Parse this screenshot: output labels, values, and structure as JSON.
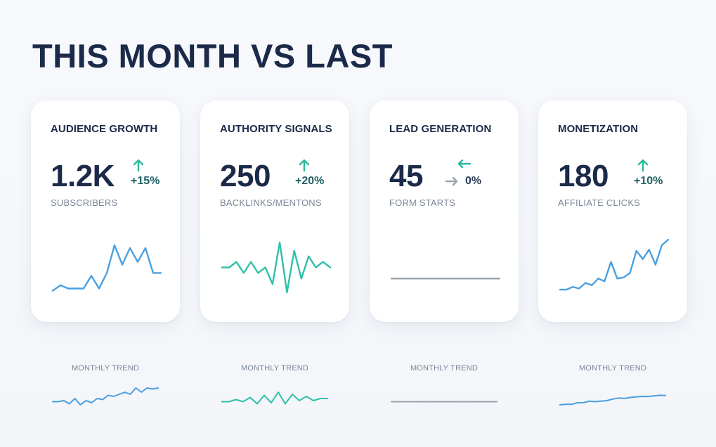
{
  "page_title": "THIS MONTH VS LAST",
  "colors": {
    "title": "#1b2a49",
    "blue_line": "#4a9fe0",
    "teal_line": "#2fc0a8",
    "gray_line": "#9aa3ad",
    "up_arrow": "#2ab89e",
    "left_arrow": "#2ab89e",
    "right_arrow": "#9aa3ad"
  },
  "cards": [
    {
      "title": "AUDIENCE GROWTH",
      "value": "1.2K",
      "delta_text": "+15%",
      "delta_icon": "arrow-up-icon",
      "subtitle": "SUBSCRIBERS",
      "trend_label": "MONTHLY TREND",
      "line_color": "#4a9fe0",
      "sparkline": [
        0.08,
        0.18,
        0.12,
        0.12,
        0.12,
        0.35,
        0.12,
        0.4,
        0.9,
        0.55,
        0.85,
        0.6,
        0.85,
        0.4,
        0.4
      ],
      "trend": [
        0.5,
        0.5,
        0.6,
        0.3,
        0.8,
        0.2,
        0.6,
        0.4,
        0.8,
        0.7,
        1.1,
        1.0,
        1.2,
        1.4,
        1.2,
        1.8,
        1.4,
        1.8,
        1.7,
        1.8
      ]
    },
    {
      "title": "AUTHORITY SIGNALS",
      "value": "250",
      "delta_text": "+20%",
      "delta_icon": "arrow-up-icon",
      "subtitle": "BACKLINKS/MENTONS",
      "trend_label": "MONTHLY TREND",
      "line_color": "#2fc0a8",
      "sparkline": [
        0.5,
        0.5,
        0.6,
        0.4,
        0.6,
        0.4,
        0.5,
        0.2,
        0.95,
        0.05,
        0.8,
        0.3,
        0.7,
        0.5,
        0.6,
        0.5
      ],
      "trend": [
        0.5,
        0.5,
        0.7,
        0.5,
        0.9,
        0.3,
        1.1,
        0.4,
        1.4,
        0.3,
        1.2,
        0.6,
        1.0,
        0.6,
        0.8,
        0.8
      ]
    },
    {
      "title": "LEAD GENERATION",
      "value": "45",
      "delta_text": "0%",
      "delta_icon": "arrow-right-icon",
      "delta_icon_top": "arrow-left-icon",
      "subtitle": "FORM STARTS",
      "trend_label": "MONTHLY TREND",
      "line_color": "#9aa3ad",
      "sparkline": [
        0.3,
        0.3
      ],
      "trend": [
        0.5,
        0.5
      ]
    },
    {
      "title": "MONETIZATION",
      "value": "180",
      "delta_text": "+10%",
      "delta_icon": "arrow-up-icon",
      "subtitle": "AFFILIATE CLICKS",
      "trend_label": "MONTHLY TREND",
      "line_color": "#4a9fe0",
      "sparkline": [
        0.1,
        0.1,
        0.15,
        0.12,
        0.22,
        0.18,
        0.3,
        0.25,
        0.6,
        0.3,
        0.32,
        0.4,
        0.8,
        0.65,
        0.82,
        0.55,
        0.9,
        1.0
      ],
      "trend": [
        0.2,
        0.25,
        0.25,
        0.4,
        0.4,
        0.55,
        0.5,
        0.55,
        0.6,
        0.75,
        0.85,
        0.8,
        0.9,
        0.95,
        1.0,
        0.98,
        1.05,
        1.1,
        1.08
      ]
    }
  ]
}
